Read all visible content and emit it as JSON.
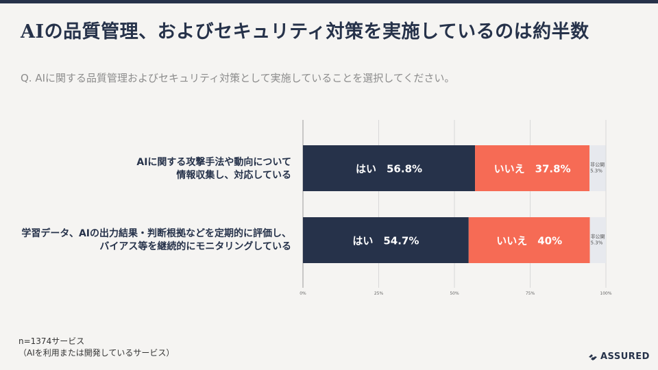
{
  "header": {
    "title": "AIの品質管理、およびセキュリティ対策を実施しているのは約半数",
    "question": "Q. AIに関する品質管理およびセキュリティ対策として実施していることを選択してください。"
  },
  "chart_data": {
    "type": "bar",
    "orientation": "horizontal",
    "stacked": true,
    "categories": [
      [
        "AIに関する攻撃手法や動向について",
        "情報収集し、対応している"
      ],
      [
        "学習データ、AIの出力結果・判断根拠などを定期的に評価し、",
        "バイアス等を継続的にモニタリングしている"
      ]
    ],
    "series": [
      {
        "name": "はい",
        "values": [
          56.8,
          54.7
        ],
        "labels": [
          "56.8%",
          "54.7%"
        ],
        "color": "#26324a"
      },
      {
        "name": "いいえ",
        "values": [
          37.8,
          40
        ],
        "labels": [
          "37.8%",
          "40%"
        ],
        "color": "#f66b55"
      },
      {
        "name": "非公開",
        "values": [
          5.3,
          5.3
        ],
        "labels": [
          "5.3%",
          "5.3%"
        ],
        "color": "#e7e9ee"
      }
    ],
    "xlim": [
      0,
      100
    ],
    "xticks": [
      "0%",
      "25%",
      "50%",
      "75%",
      "100%"
    ],
    "grid": true,
    "legend": "none"
  },
  "footer": {
    "note_line1": "n=1374サービス",
    "note_line2": "（AIを利用または開発しているサービス）"
  },
  "brand": {
    "name": "ASSURED",
    "icon": "assured-logo-icon"
  }
}
